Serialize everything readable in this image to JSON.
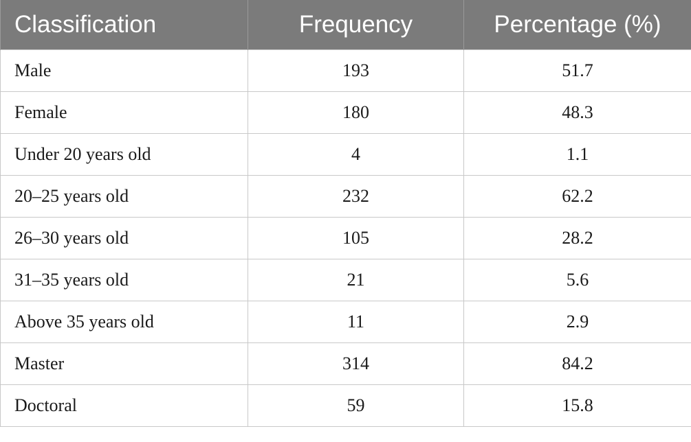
{
  "table": {
    "headers": [
      "Classification",
      "Frequency",
      "Percentage (%)"
    ],
    "rows": [
      {
        "classification": "Male",
        "frequency": "193",
        "percentage": "51.7"
      },
      {
        "classification": "Female",
        "frequency": "180",
        "percentage": "48.3"
      },
      {
        "classification": "Under 20 years old",
        "frequency": "4",
        "percentage": "1.1"
      },
      {
        "classification": "20–25 years old",
        "frequency": "232",
        "percentage": "62.2"
      },
      {
        "classification": "26–30 years old",
        "frequency": "105",
        "percentage": "28.2"
      },
      {
        "classification": "31–35 years old",
        "frequency": "21",
        "percentage": "5.6"
      },
      {
        "classification": "Above 35 years old",
        "frequency": "11",
        "percentage": "2.9"
      },
      {
        "classification": "Master",
        "frequency": "314",
        "percentage": "84.2"
      },
      {
        "classification": "Doctoral",
        "frequency": "59",
        "percentage": "15.8"
      }
    ]
  },
  "colors": {
    "header_background": "#7b7b7b",
    "header_text": "#ffffff",
    "grid_lines": "#c8c8c8"
  }
}
